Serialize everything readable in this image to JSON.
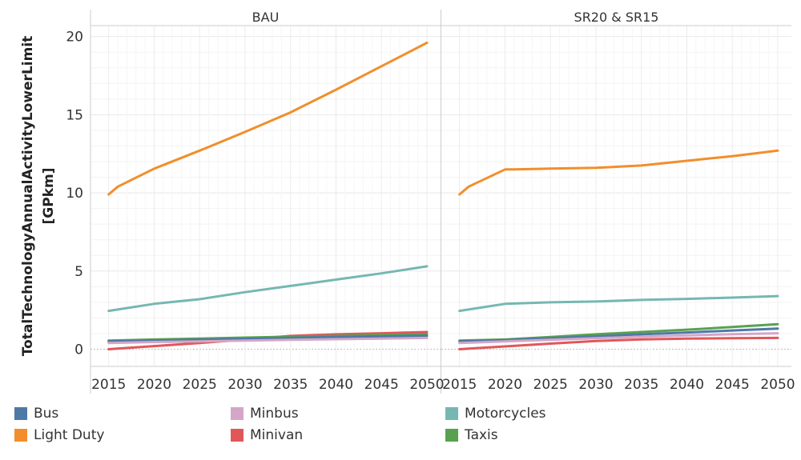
{
  "chart_data": {
    "type": "line",
    "ylabel_line1": "TotalTechnologyAnnualActivityLowerLimit",
    "ylabel_line2": "[GPkm]",
    "ylim": [
      -1.1,
      20.7
    ],
    "xlim": [
      2013,
      2051.5
    ],
    "y_ticks": [
      "0",
      "5",
      "10",
      "15",
      "20"
    ],
    "x_ticks": [
      "2015",
      "2020",
      "2025",
      "2030",
      "2035",
      "2040",
      "2045",
      "2050"
    ],
    "legend": [
      {
        "name": "Bus",
        "color": "#4e79a7"
      },
      {
        "name": "Light Duty",
        "color": "#f28e2b"
      },
      {
        "name": "Minbus",
        "color": "#d4a6c8"
      },
      {
        "name": "Minivan",
        "color": "#e15759"
      },
      {
        "name": "Motorcycles",
        "color": "#76b7b2"
      },
      {
        "name": "Taxis",
        "color": "#59a14f"
      }
    ],
    "panels": [
      {
        "title": "BAU",
        "series": [
          {
            "name": "Light Duty",
            "points": [
              [
                2015,
                9.9
              ],
              [
                2016,
                10.4
              ],
              [
                2020,
                11.55
              ],
              [
                2025,
                12.7
              ],
              [
                2030,
                13.9
              ],
              [
                2035,
                15.15
              ],
              [
                2040,
                16.6
              ],
              [
                2045,
                18.1
              ],
              [
                2050,
                19.6
              ]
            ]
          },
          {
            "name": "Motorcycles",
            "points": [
              [
                2015,
                2.45
              ],
              [
                2020,
                2.9
              ],
              [
                2025,
                3.2
              ],
              [
                2030,
                3.65
              ],
              [
                2035,
                4.05
              ],
              [
                2040,
                4.45
              ],
              [
                2045,
                4.85
              ],
              [
                2050,
                5.3
              ]
            ]
          },
          {
            "name": "Minivan",
            "points": [
              [
                2015,
                0.0
              ],
              [
                2020,
                0.2
              ],
              [
                2025,
                0.4
              ],
              [
                2030,
                0.62
              ],
              [
                2035,
                0.85
              ],
              [
                2040,
                0.95
              ],
              [
                2045,
                1.02
              ],
              [
                2050,
                1.1
              ]
            ]
          },
          {
            "name": "Taxis",
            "points": [
              [
                2015,
                0.55
              ],
              [
                2020,
                0.62
              ],
              [
                2025,
                0.68
              ],
              [
                2030,
                0.74
              ],
              [
                2035,
                0.8
              ],
              [
                2040,
                0.85
              ],
              [
                2045,
                0.9
              ],
              [
                2050,
                0.95
              ]
            ]
          },
          {
            "name": "Bus",
            "points": [
              [
                2015,
                0.5
              ],
              [
                2020,
                0.55
              ],
              [
                2025,
                0.6
              ],
              [
                2030,
                0.66
              ],
              [
                2035,
                0.72
              ],
              [
                2040,
                0.78
              ],
              [
                2045,
                0.82
              ],
              [
                2050,
                0.86
              ]
            ]
          },
          {
            "name": "Minbus",
            "points": [
              [
                2015,
                0.4
              ],
              [
                2020,
                0.46
              ],
              [
                2025,
                0.5
              ],
              [
                2030,
                0.55
              ],
              [
                2035,
                0.6
              ],
              [
                2040,
                0.64
              ],
              [
                2045,
                0.68
              ],
              [
                2050,
                0.72
              ]
            ]
          }
        ]
      },
      {
        "title": "SR20 & SR15",
        "series": [
          {
            "name": "Light Duty",
            "points": [
              [
                2015,
                9.9
              ],
              [
                2016,
                10.4
              ],
              [
                2020,
                11.5
              ],
              [
                2021,
                11.5
              ],
              [
                2025,
                11.55
              ],
              [
                2030,
                11.6
              ],
              [
                2035,
                11.75
              ],
              [
                2040,
                12.05
              ],
              [
                2045,
                12.35
              ],
              [
                2050,
                12.7
              ]
            ]
          },
          {
            "name": "Motorcycles",
            "points": [
              [
                2015,
                2.45
              ],
              [
                2020,
                2.9
              ],
              [
                2025,
                3.0
              ],
              [
                2030,
                3.05
              ],
              [
                2035,
                3.15
              ],
              [
                2040,
                3.22
              ],
              [
                2045,
                3.3
              ],
              [
                2050,
                3.4
              ]
            ]
          },
          {
            "name": "Taxis",
            "points": [
              [
                2015,
                0.55
              ],
              [
                2020,
                0.62
              ],
              [
                2025,
                0.78
              ],
              [
                2030,
                0.95
              ],
              [
                2035,
                1.1
              ],
              [
                2040,
                1.25
              ],
              [
                2045,
                1.42
              ],
              [
                2050,
                1.6
              ]
            ]
          },
          {
            "name": "Bus",
            "points": [
              [
                2015,
                0.5
              ],
              [
                2020,
                0.58
              ],
              [
                2025,
                0.7
              ],
              [
                2030,
                0.82
              ],
              [
                2035,
                0.95
              ],
              [
                2040,
                1.07
              ],
              [
                2045,
                1.2
              ],
              [
                2050,
                1.32
              ]
            ]
          },
          {
            "name": "Minbus",
            "points": [
              [
                2015,
                0.4
              ],
              [
                2020,
                0.5
              ],
              [
                2025,
                0.6
              ],
              [
                2030,
                0.7
              ],
              [
                2035,
                0.8
              ],
              [
                2040,
                0.88
              ],
              [
                2045,
                0.96
              ],
              [
                2050,
                1.02
              ]
            ]
          },
          {
            "name": "Minivan",
            "points": [
              [
                2015,
                0.0
              ],
              [
                2020,
                0.18
              ],
              [
                2025,
                0.36
              ],
              [
                2030,
                0.52
              ],
              [
                2035,
                0.63
              ],
              [
                2040,
                0.68
              ],
              [
                2045,
                0.7
              ],
              [
                2050,
                0.72
              ]
            ]
          }
        ]
      }
    ]
  }
}
